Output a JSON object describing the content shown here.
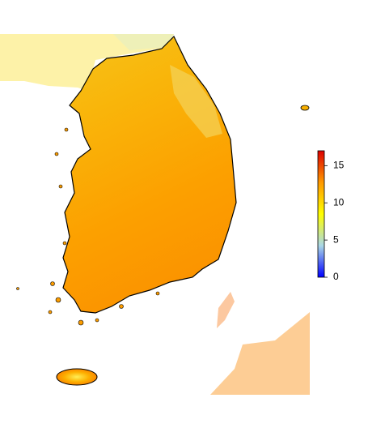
{
  "colorbar": {
    "lim": [
      0,
      17
    ],
    "ticks": [
      0,
      5,
      10,
      15
    ],
    "colors": [
      "#0000ff",
      "#aad8e6",
      "#ffff00",
      "#ff9900",
      "#dd0000"
    ]
  }
}
